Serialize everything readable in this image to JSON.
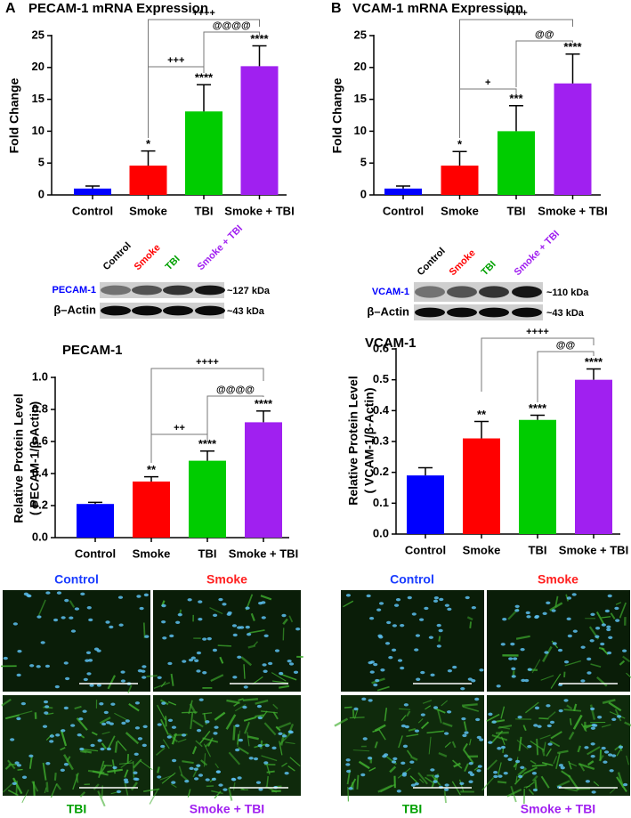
{
  "panel_letters": [
    "A",
    "B"
  ],
  "chart_data": [
    {
      "type": "bar",
      "title": "PECAM-1 mRNA Expression",
      "ylabel": [
        "Fold Change"
      ],
      "categories": [
        "Control",
        "Smoke",
        "TBI",
        "Smoke + TBI"
      ],
      "values": [
        1.0,
        4.6,
        13.1,
        20.2
      ],
      "errors": [
        0.4,
        2.3,
        4.2,
        3.2
      ],
      "colors": [
        "#0000ff",
        "#ff0000",
        "#00cc00",
        "#a020f0"
      ],
      "annotations": [
        null,
        "*",
        "****",
        "****"
      ],
      "comparisons": [
        "++++",
        "+++",
        "@@@@"
      ],
      "ylim": [
        0,
        25
      ],
      "yticks": [
        0,
        5,
        10,
        15,
        20,
        25
      ],
      "grid": false
    },
    {
      "type": "bar",
      "title": "VCAM-1 mRNA Expression",
      "ylabel": [
        "Fold Change"
      ],
      "categories": [
        "Control",
        "Smoke",
        "TBI",
        "Smoke + TBI"
      ],
      "values": [
        1.0,
        4.6,
        10.0,
        17.5
      ],
      "errors": [
        0.4,
        2.2,
        4.0,
        4.6
      ],
      "colors": [
        "#0000ff",
        "#ff0000",
        "#00cc00",
        "#a020f0"
      ],
      "annotations": [
        null,
        "*",
        "***",
        "****"
      ],
      "comparisons": [
        "++++",
        "+",
        "@@"
      ],
      "ylim": [
        0,
        25
      ],
      "yticks": [
        0,
        5,
        10,
        15,
        20,
        25
      ],
      "grid": false
    },
    {
      "type": "bar",
      "title": "PECAM-1",
      "ylabel": [
        "Relative Protein Level",
        "( PECAM-1/β-Actin)"
      ],
      "categories": [
        "Control",
        "Smoke",
        "TBI",
        "Smoke + TBI"
      ],
      "values": [
        0.21,
        0.35,
        0.48,
        0.72
      ],
      "errors": [
        0.01,
        0.03,
        0.06,
        0.07
      ],
      "colors": [
        "#0000ff",
        "#ff0000",
        "#00cc00",
        "#a020f0"
      ],
      "annotations": [
        null,
        "**",
        "****",
        "****"
      ],
      "comparisons": [
        "++++",
        "++",
        "@@@@"
      ],
      "ylim": [
        0,
        1
      ],
      "yticks": [
        {
          "value": 0,
          "label": "0.0"
        },
        0.2,
        0.4,
        0.6,
        0.8,
        {
          "value": 1,
          "label": "1.0"
        }
      ],
      "grid": false
    },
    {
      "type": "bar",
      "title": "VCAM-1",
      "ylabel": [
        "Relative Protein Level",
        "( VCAM-1/β-Actin)"
      ],
      "categories": [
        "Control",
        "Smoke",
        "TBI",
        "Smoke + TBI"
      ],
      "values": [
        0.19,
        0.31,
        0.37,
        0.5
      ],
      "errors": [
        0.025,
        0.055,
        0.015,
        0.035
      ],
      "colors": [
        "#0000ff",
        "#ff0000",
        "#00cc00",
        "#a020f0"
      ],
      "annotations": [
        null,
        "**",
        "****",
        "****"
      ],
      "comparisons": [
        "++++",
        "@@"
      ],
      "ylim": [
        0,
        0.6
      ],
      "yticks": [
        {
          "value": 0,
          "label": "0.0"
        },
        0.1,
        0.2,
        0.3,
        0.4,
        0.5,
        0.6
      ],
      "grid": false
    }
  ],
  "blots": [
    {
      "lanes": [
        "Control",
        "Smoke",
        "TBI",
        "Smoke + TBI"
      ],
      "lane_colors": [
        "#000000",
        "#ff0000",
        "#00a000",
        "#a020f0"
      ],
      "bands": [
        {
          "name": "PECAM-1",
          "color": "#0000ff",
          "size": "~127 kDa"
        },
        {
          "name": "β–Actin",
          "color": "#000000",
          "size": "~43 kDa"
        }
      ]
    },
    {
      "lanes": [
        "Control",
        "Smoke",
        "TBI",
        "Smoke + TBI"
      ],
      "lane_colors": [
        "#000000",
        "#ff0000",
        "#00a000",
        "#a020f0"
      ],
      "bands": [
        {
          "name": "VCAM-1",
          "color": "#0000ff",
          "size": "~110 kDa"
        },
        {
          "name": "β–Actin",
          "color": "#000000",
          "size": "~43 kDa"
        }
      ]
    }
  ],
  "micrographs": [
    {
      "labels": [
        "Control",
        "Smoke",
        "TBI",
        "Smoke + TBI"
      ],
      "colors": [
        "#1a3cff",
        "#ff2020",
        "#00a000",
        "#a020f0"
      ]
    },
    {
      "labels": [
        "Control",
        "Smoke",
        "TBI",
        "Smoke + TBI"
      ],
      "colors": [
        "#1a3cff",
        "#ff2020",
        "#00a000",
        "#a020f0"
      ]
    }
  ]
}
